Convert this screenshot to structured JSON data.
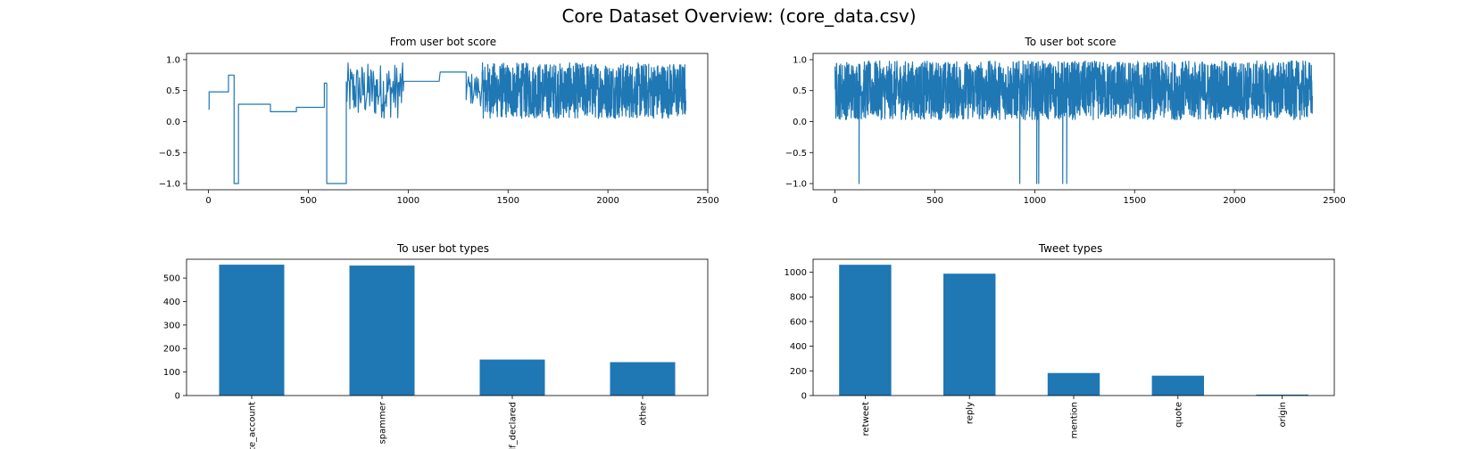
{
  "figure_title": "Core Dataset Overview: (core_data.csv)",
  "colors": {
    "series": "#1f77b4"
  },
  "chart_data": [
    {
      "type": "line",
      "title": "From user bot score",
      "xlim": [
        -110,
        2500
      ],
      "ylim": [
        -1.1,
        1.1
      ],
      "xticks": [
        0,
        500,
        1000,
        1500,
        2000,
        2500
      ],
      "yticks": [
        -1.0,
        -0.5,
        0.0,
        0.5,
        1.0
      ],
      "ytick_labels": [
        "−1.0",
        "−0.5",
        "0.0",
        "0.5",
        "1.0"
      ],
      "segments": [
        {
          "x": [
            0,
            3
          ],
          "y": [
            0.2,
            0.2
          ]
        },
        {
          "x": [
            3,
            100
          ],
          "y": [
            0.48,
            0.48
          ]
        },
        {
          "x": [
            100,
            128
          ],
          "y": [
            0.75,
            0.75
          ]
        },
        {
          "x": [
            128,
            150
          ],
          "y": [
            -1.0,
            -1.0
          ]
        },
        {
          "x": [
            150,
            310
          ],
          "y": [
            0.28,
            0.28
          ]
        },
        {
          "x": [
            310,
            440
          ],
          "y": [
            0.16,
            0.16
          ]
        },
        {
          "x": [
            440,
            580
          ],
          "y": [
            0.23,
            0.23
          ]
        },
        {
          "x": [
            580,
            592
          ],
          "y": [
            0.62,
            0.62
          ]
        },
        {
          "x": [
            592,
            690
          ],
          "y": [
            -1.0,
            -1.0
          ]
        },
        {
          "x": [
            978,
            1155
          ],
          "y": [
            0.65,
            0.65
          ]
        },
        {
          "x": [
            1160,
            1290
          ],
          "y": [
            0.8,
            0.8
          ]
        }
      ],
      "noise_ranges": [
        {
          "x0": 690,
          "x1": 975,
          "ymin": 0.05,
          "ymax": 0.95,
          "step": 3
        },
        {
          "x0": 1290,
          "x1": 1370,
          "ymin": 0.25,
          "ymax": 0.8,
          "step": 4
        },
        {
          "x0": 1370,
          "x1": 2390,
          "ymin": 0.05,
          "ymax": 0.95,
          "step": 1
        }
      ]
    },
    {
      "type": "line",
      "title": "To user bot score",
      "xlim": [
        -110,
        2500
      ],
      "ylim": [
        -1.1,
        1.1
      ],
      "xticks": [
        0,
        500,
        1000,
        1500,
        2000,
        2500
      ],
      "yticks": [
        -1.0,
        -0.5,
        0.0,
        0.5,
        1.0
      ],
      "ytick_labels": [
        "−1.0",
        "−0.5",
        "0.0",
        "0.5",
        "1.0"
      ],
      "noise_ranges": [
        {
          "x0": 0,
          "x1": 2390,
          "ymin": 0.03,
          "ymax": 0.98,
          "step": 1
        }
      ],
      "spikes": [
        {
          "x": 120,
          "y": -1.0
        },
        {
          "x": 925,
          "y": -1.0
        },
        {
          "x": 1010,
          "y": -1.0
        },
        {
          "x": 1020,
          "y": -1.0
        },
        {
          "x": 1140,
          "y": -1.0
        },
        {
          "x": 1160,
          "y": -1.0
        }
      ]
    },
    {
      "type": "bar",
      "title": "To user bot types",
      "categories": [
        "te_account",
        "spammer",
        "lf_declared",
        "other"
      ],
      "values": [
        557,
        553,
        153,
        142
      ],
      "ylim": [
        0,
        580
      ],
      "yticks": [
        0,
        100,
        200,
        300,
        400,
        500
      ],
      "ytick_labels": [
        "0",
        "100",
        "200",
        "300",
        "400",
        "500"
      ]
    },
    {
      "type": "bar",
      "title": "Tweet types",
      "categories": [
        "retweet",
        "reply",
        "mention",
        "quote",
        "origin"
      ],
      "values": [
        1060,
        988,
        183,
        161,
        8
      ],
      "ylim": [
        0,
        1105
      ],
      "yticks": [
        0,
        200,
        400,
        600,
        800,
        1000
      ],
      "ytick_labels": [
        "0",
        "200",
        "400",
        "600",
        "800",
        "1000"
      ]
    }
  ]
}
